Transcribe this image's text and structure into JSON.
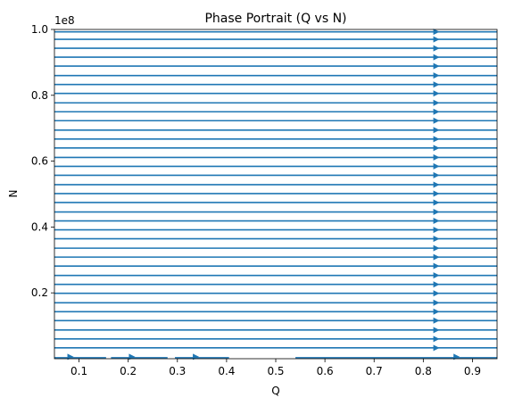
{
  "chart_data": {
    "type": "streamplot",
    "title": "Phase Portrait (Q vs N)",
    "xlabel": "Q",
    "ylabel": "N",
    "y_offset_label": "1e8",
    "xlim": [
      0.05,
      0.95
    ],
    "ylim": [
      0.0,
      1.0
    ],
    "x_ticks": [
      0.1,
      0.2,
      0.3,
      0.4,
      0.5,
      0.6,
      0.7,
      0.8,
      0.9
    ],
    "x_tick_labels": [
      "0.1",
      "0.2",
      "0.3",
      "0.4",
      "0.5",
      "0.6",
      "0.7",
      "0.8",
      "0.9"
    ],
    "y_ticks": [
      0.2,
      0.4,
      0.6,
      0.8,
      1.0
    ],
    "y_tick_labels": [
      "0.2",
      "0.4",
      "0.6",
      "0.8",
      "1.0"
    ],
    "stream_color": "#1f77b4",
    "direction": "positive-Q",
    "streamlines": [
      {
        "n": 0.9928
      },
      {
        "n": 0.97
      },
      {
        "n": 0.9428
      },
      {
        "n": 0.9157
      },
      {
        "n": 0.8886
      },
      {
        "n": 0.86
      },
      {
        "n": 0.8328
      },
      {
        "n": 0.8057
      },
      {
        "n": 0.7771
      },
      {
        "n": 0.75
      },
      {
        "n": 0.7229
      },
      {
        "n": 0.6943
      },
      {
        "n": 0.6671
      },
      {
        "n": 0.64
      },
      {
        "n": 0.6114
      },
      {
        "n": 0.5843
      },
      {
        "n": 0.5571
      },
      {
        "n": 0.5286
      },
      {
        "n": 0.5014
      },
      {
        "n": 0.4743
      },
      {
        "n": 0.4457
      },
      {
        "n": 0.4186
      },
      {
        "n": 0.3914
      },
      {
        "n": 0.3643
      },
      {
        "n": 0.3357
      },
      {
        "n": 0.3086
      },
      {
        "n": 0.2814
      },
      {
        "n": 0.2529
      },
      {
        "n": 0.2257
      },
      {
        "n": 0.1986
      },
      {
        "n": 0.17
      },
      {
        "n": 0.1429
      },
      {
        "n": 0.1157
      },
      {
        "n": 0.0871
      },
      {
        "n": 0.06
      },
      {
        "n": 0.0329
      }
    ],
    "arrow_q": 0.824,
    "bottom_segments": [
      {
        "n": 0.0029,
        "q_start": 0.05,
        "q_end": 0.155,
        "arrow_q": 0.08
      },
      {
        "n": 0.0029,
        "q_start": 0.165,
        "q_end": 0.28,
        "arrow_q": 0.205
      },
      {
        "n": 0.0029,
        "q_start": 0.295,
        "q_end": 0.405,
        "arrow_q": 0.335
      },
      {
        "n": 0.0029,
        "q_start": 0.54,
        "q_end": 0.95,
        "arrow_q": 0.865
      }
    ]
  }
}
